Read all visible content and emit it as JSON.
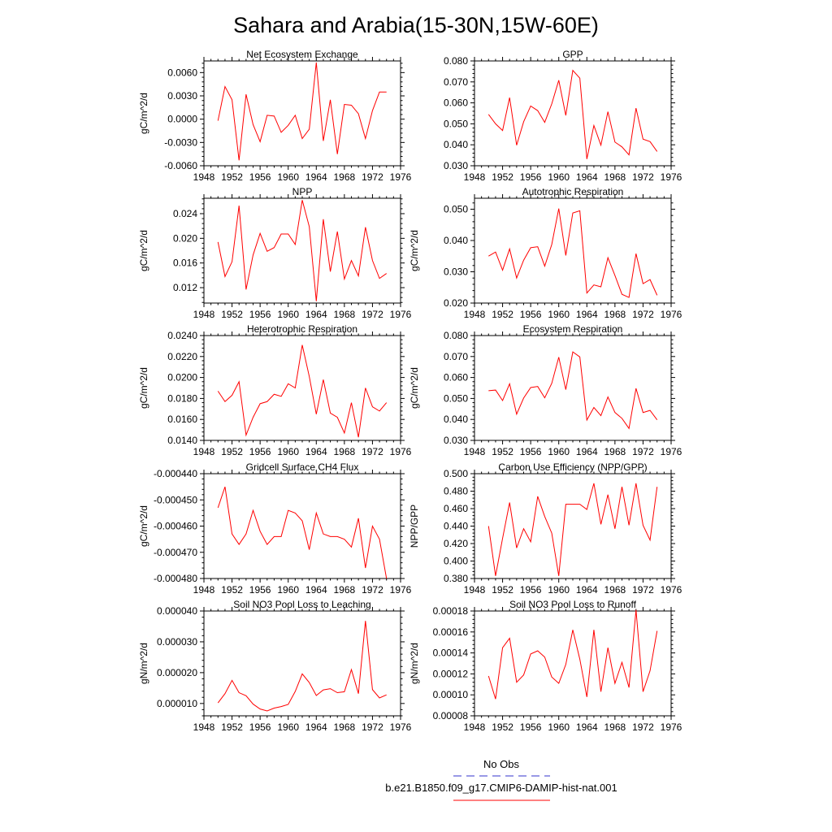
{
  "title": "Sahara and Arabia(15-30N,15W-60E)",
  "colors": {
    "series": "#ff0000",
    "obs": "#3333cc",
    "axis": "#000000"
  },
  "legend": [
    {
      "label": "No Obs",
      "color": "#3333cc",
      "style": "dashed"
    },
    {
      "label": "b.e21.B1850.f09_g17.CMIP6-DAMIP-hist-nat.001",
      "color": "#ff0000",
      "style": "solid"
    }
  ],
  "chart_data": [
    {
      "type": "line",
      "title": "Net Ecosystem Exchange",
      "ylabel": "gC/m^2/d",
      "xlim": [
        1948,
        1976
      ],
      "xticks": [
        1948,
        1952,
        1956,
        1960,
        1964,
        1968,
        1972,
        1976
      ],
      "ylim": [
        -0.006,
        0.0075
      ],
      "yticks": [
        -0.006,
        -0.003,
        0.0,
        0.003,
        0.006
      ],
      "ytick_labels": [
        "-0.0060",
        "-0.0030",
        "0.0000",
        "0.0030",
        "0.0060"
      ],
      "x": [
        1950,
        1951,
        1952,
        1953,
        1954,
        1955,
        1956,
        1957,
        1958,
        1959,
        1960,
        1961,
        1962,
        1963,
        1964,
        1965,
        1966,
        1967,
        1968,
        1969,
        1970,
        1971,
        1972,
        1973,
        1974
      ],
      "y": [
        -0.0002,
        0.0042,
        0.0025,
        -0.0053,
        0.0032,
        -0.0007,
        -0.0029,
        0.0005,
        0.0004,
        -0.0017,
        -0.0008,
        0.0005,
        -0.0025,
        -0.0013,
        0.0073,
        -0.0028,
        0.0025,
        -0.0045,
        0.0019,
        0.0018,
        0.0007,
        -0.0025,
        0.0011,
        0.0035,
        0.0035
      ]
    },
    {
      "type": "line",
      "title": "GPP",
      "ylabel": "",
      "xlim": [
        1948,
        1976
      ],
      "xticks": [
        1948,
        1952,
        1956,
        1960,
        1964,
        1968,
        1972,
        1976
      ],
      "ylim": [
        0.03,
        0.08
      ],
      "yticks": [
        0.03,
        0.04,
        0.05,
        0.06,
        0.07,
        0.08
      ],
      "ytick_labels": [
        "0.030",
        "0.040",
        "0.050",
        "0.060",
        "0.070",
        "0.080"
      ],
      "x": [
        1950,
        1951,
        1952,
        1953,
        1954,
        1955,
        1956,
        1957,
        1958,
        1959,
        1960,
        1961,
        1962,
        1963,
        1964,
        1965,
        1966,
        1967,
        1968,
        1969,
        1970,
        1971,
        1972,
        1973,
        1974
      ],
      "y": [
        0.0545,
        0.05,
        0.0468,
        0.0625,
        0.0398,
        0.051,
        0.0585,
        0.0563,
        0.0507,
        0.0595,
        0.0708,
        0.054,
        0.0755,
        0.0718,
        0.0332,
        0.0492,
        0.0398,
        0.0558,
        0.0413,
        0.039,
        0.0352,
        0.0575,
        0.0427,
        0.0415,
        0.0368
      ]
    },
    {
      "type": "line",
      "title": "NPP",
      "ylabel": "gC/m^2/d",
      "xlim": [
        1948,
        1976
      ],
      "xticks": [
        1948,
        1952,
        1956,
        1960,
        1964,
        1968,
        1972,
        1976
      ],
      "ylim": [
        0.0095,
        0.0265
      ],
      "yticks": [
        0.012,
        0.016,
        0.02,
        0.024
      ],
      "ytick_labels": [
        "0.012",
        "0.016",
        "0.020",
        "0.024"
      ],
      "x": [
        1950,
        1951,
        1952,
        1953,
        1954,
        1955,
        1956,
        1957,
        1958,
        1959,
        1960,
        1961,
        1962,
        1963,
        1964,
        1965,
        1966,
        1967,
        1968,
        1969,
        1970,
        1971,
        1972,
        1973,
        1974
      ],
      "y": [
        0.0194,
        0.0138,
        0.0162,
        0.0253,
        0.0117,
        0.0173,
        0.0208,
        0.0179,
        0.0185,
        0.0207,
        0.0207,
        0.019,
        0.0262,
        0.0219,
        0.0098,
        0.0231,
        0.0146,
        0.0211,
        0.0134,
        0.0164,
        0.0139,
        0.0218,
        0.0164,
        0.0135,
        0.0143
      ]
    },
    {
      "type": "line",
      "title": "Autotrophic Respiration",
      "ylabel": "gC/m^2/d",
      "xlim": [
        1948,
        1976
      ],
      "xticks": [
        1948,
        1952,
        1956,
        1960,
        1964,
        1968,
        1972,
        1976
      ],
      "ylim": [
        0.02,
        0.0535
      ],
      "yticks": [
        0.02,
        0.03,
        0.04,
        0.05
      ],
      "ytick_labels": [
        "0.020",
        "0.030",
        "0.040",
        "0.050"
      ],
      "x": [
        1950,
        1951,
        1952,
        1953,
        1954,
        1955,
        1956,
        1957,
        1958,
        1959,
        1960,
        1961,
        1962,
        1963,
        1964,
        1965,
        1966,
        1967,
        1968,
        1969,
        1970,
        1971,
        1972,
        1973,
        1974
      ],
      "y": [
        0.035,
        0.0363,
        0.0305,
        0.0373,
        0.028,
        0.0337,
        0.0377,
        0.038,
        0.0318,
        0.0387,
        0.0502,
        0.0352,
        0.0488,
        0.0495,
        0.0232,
        0.0258,
        0.0252,
        0.0345,
        0.0288,
        0.0228,
        0.0218,
        0.0358,
        0.0262,
        0.0275,
        0.0225
      ]
    },
    {
      "type": "line",
      "title": "Heterotrophic Respiration",
      "ylabel": "gC/m^2/d",
      "xlim": [
        1948,
        1976
      ],
      "xticks": [
        1948,
        1952,
        1956,
        1960,
        1964,
        1968,
        1972,
        1976
      ],
      "ylim": [
        0.014,
        0.024
      ],
      "yticks": [
        0.014,
        0.016,
        0.018,
        0.02,
        0.022,
        0.024
      ],
      "ytick_labels": [
        "0.0140",
        "0.0160",
        "0.0180",
        "0.0200",
        "0.0220",
        "0.0240"
      ],
      "x": [
        1950,
        1951,
        1952,
        1953,
        1954,
        1955,
        1956,
        1957,
        1958,
        1959,
        1960,
        1961,
        1962,
        1963,
        1964,
        1965,
        1966,
        1967,
        1968,
        1969,
        1970,
        1971,
        1972,
        1973,
        1974
      ],
      "y": [
        0.0187,
        0.0177,
        0.0183,
        0.0196,
        0.0145,
        0.0162,
        0.0175,
        0.0177,
        0.0184,
        0.0182,
        0.0194,
        0.019,
        0.0231,
        0.0201,
        0.0165,
        0.0198,
        0.0166,
        0.0162,
        0.0147,
        0.0176,
        0.0143,
        0.019,
        0.0172,
        0.0168,
        0.0176
      ]
    },
    {
      "type": "line",
      "title": "Ecosystem Respiration",
      "ylabel": "gC/m^2/d",
      "xlim": [
        1948,
        1976
      ],
      "xticks": [
        1948,
        1952,
        1956,
        1960,
        1964,
        1968,
        1972,
        1976
      ],
      "ylim": [
        0.03,
        0.08
      ],
      "yticks": [
        0.03,
        0.04,
        0.05,
        0.06,
        0.07,
        0.08
      ],
      "ytick_labels": [
        "0.030",
        "0.040",
        "0.050",
        "0.060",
        "0.070",
        "0.080"
      ],
      "x": [
        1950,
        1951,
        1952,
        1953,
        1954,
        1955,
        1956,
        1957,
        1958,
        1959,
        1960,
        1961,
        1962,
        1963,
        1964,
        1965,
        1966,
        1967,
        1968,
        1969,
        1970,
        1971,
        1972,
        1973,
        1974
      ],
      "y": [
        0.0537,
        0.054,
        0.049,
        0.057,
        0.0425,
        0.0502,
        0.0552,
        0.0557,
        0.0503,
        0.0572,
        0.0697,
        0.0542,
        0.0722,
        0.0698,
        0.0397,
        0.0457,
        0.0418,
        0.0507,
        0.0433,
        0.0405,
        0.0357,
        0.0548,
        0.0433,
        0.0443,
        0.0398
      ]
    },
    {
      "type": "line",
      "title": "Gridcell Surface CH4 Flux",
      "ylabel": "gC/m^2/d",
      "xlim": [
        1948,
        1976
      ],
      "xticks": [
        1948,
        1952,
        1956,
        1960,
        1964,
        1968,
        1972,
        1976
      ],
      "ylim": [
        -0.00048,
        -0.00044
      ],
      "yticks": [
        -0.00048,
        -0.00047,
        -0.00046,
        -0.00045,
        -0.00044
      ],
      "ytick_labels": [
        "-0.000480",
        "-0.000470",
        "-0.000460",
        "-0.000450",
        "-0.000440"
      ],
      "x": [
        1950,
        1951,
        1952,
        1953,
        1954,
        1955,
        1956,
        1957,
        1958,
        1959,
        1960,
        1961,
        1962,
        1963,
        1964,
        1965,
        1966,
        1967,
        1968,
        1969,
        1970,
        1971,
        1972,
        1973,
        1974
      ],
      "y": [
        -0.000453,
        -0.000445,
        -0.000463,
        -0.000467,
        -0.000463,
        -0.000454,
        -0.000462,
        -0.000467,
        -0.000464,
        -0.000464,
        -0.000454,
        -0.000455,
        -0.000458,
        -0.000469,
        -0.000455,
        -0.000463,
        -0.000464,
        -0.000464,
        -0.000465,
        -0.000468,
        -0.000457,
        -0.000476,
        -0.00046,
        -0.000465,
        -0.00048
      ]
    },
    {
      "type": "line",
      "title": "Carbon Use Efficiency (NPP/GPP)",
      "ylabel": "NPP/GPP",
      "xlim": [
        1948,
        1976
      ],
      "xticks": [
        1948,
        1952,
        1956,
        1960,
        1964,
        1968,
        1972,
        1976
      ],
      "ylim": [
        0.38,
        0.5
      ],
      "yticks": [
        0.38,
        0.4,
        0.42,
        0.44,
        0.46,
        0.48,
        0.5
      ],
      "ytick_labels": [
        "0.380",
        "0.400",
        "0.420",
        "0.440",
        "0.460",
        "0.480",
        "0.500"
      ],
      "x": [
        1950,
        1951,
        1952,
        1953,
        1954,
        1955,
        1956,
        1957,
        1958,
        1959,
        1960,
        1961,
        1962,
        1963,
        1964,
        1965,
        1966,
        1967,
        1968,
        1969,
        1970,
        1971,
        1972,
        1973,
        1974
      ],
      "y": [
        0.44,
        0.383,
        0.426,
        0.467,
        0.415,
        0.437,
        0.422,
        0.474,
        0.451,
        0.432,
        0.383,
        0.465,
        0.465,
        0.465,
        0.459,
        0.489,
        0.442,
        0.476,
        0.437,
        0.485,
        0.441,
        0.489,
        0.441,
        0.424,
        0.485
      ]
    },
    {
      "type": "line",
      "title": "Soil NO3 Pool Loss to Leaching",
      "ylabel": "gN/m^2/d",
      "xlim": [
        1948,
        1976
      ],
      "xticks": [
        1948,
        1952,
        1956,
        1960,
        1964,
        1968,
        1972,
        1976
      ],
      "ylim": [
        6e-06,
        4e-05
      ],
      "yticks": [
        1e-05,
        2e-05,
        3e-05,
        4e-05
      ],
      "ytick_labels": [
        "0.000010",
        "0.000020",
        "0.000030",
        "0.000040"
      ],
      "x": [
        1950,
        1951,
        1952,
        1953,
        1954,
        1955,
        1956,
        1957,
        1958,
        1959,
        1960,
        1961,
        1962,
        1963,
        1964,
        1965,
        1966,
        1967,
        1968,
        1969,
        1970,
        1971,
        1972,
        1973,
        1974
      ],
      "y": [
        1.02e-05,
        1.32e-05,
        1.75e-05,
        1.35e-05,
        1.25e-05,
        9.8e-06,
        8.2e-06,
        7.6e-06,
        8.5e-06,
        9e-06,
        9.7e-06,
        1.39e-05,
        1.96e-05,
        1.68e-05,
        1.26e-05,
        1.44e-05,
        1.48e-05,
        1.35e-05,
        1.38e-05,
        2.1e-05,
        1.32e-05,
        3.68e-05,
        1.45e-05,
        1.18e-05,
        1.28e-05
      ]
    },
    {
      "type": "line",
      "title": "Soil NO3 Pool Loss to Runoff",
      "ylabel": "gN/m^2/d",
      "xlim": [
        1948,
        1976
      ],
      "xticks": [
        1948,
        1952,
        1956,
        1960,
        1964,
        1968,
        1972,
        1976
      ],
      "ylim": [
        8e-05,
        0.00018
      ],
      "yticks": [
        8e-05,
        0.0001,
        0.00012,
        0.00014,
        0.00016,
        0.00018
      ],
      "ytick_labels": [
        "0.00008",
        "0.00010",
        "0.00012",
        "0.00014",
        "0.00016",
        "0.00018"
      ],
      "x": [
        1950,
        1951,
        1952,
        1953,
        1954,
        1955,
        1956,
        1957,
        1958,
        1959,
        1960,
        1961,
        1962,
        1963,
        1964,
        1965,
        1966,
        1967,
        1968,
        1969,
        1970,
        1971,
        1972,
        1973,
        1974
      ],
      "y": [
        0.000118,
        9.6e-05,
        0.000145,
        0.000154,
        0.000112,
        0.000119,
        0.000139,
        0.000142,
        0.000136,
        0.000117,
        0.000111,
        0.000129,
        0.000162,
        0.000134,
        9.8e-05,
        0.000162,
        0.000103,
        0.000145,
        0.000111,
        0.000131,
        0.000107,
        0.000181,
        0.000103,
        0.000123,
        0.000161
      ]
    }
  ]
}
